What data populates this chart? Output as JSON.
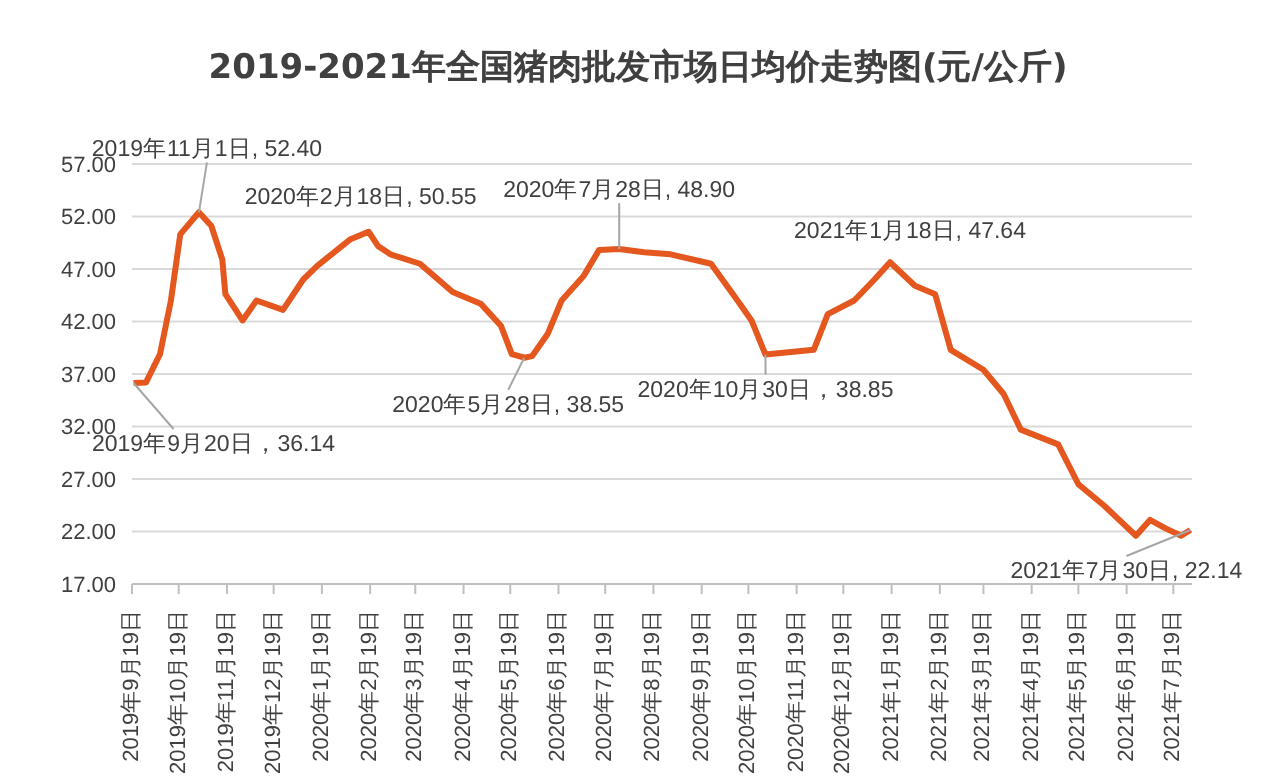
{
  "chart_data": {
    "type": "line",
    "title": "2019-2021年全国猪肉批发市场日均价走势图(元/公斤)",
    "x": [
      "2019-09-20",
      "2019-09-28",
      "2019-10-07",
      "2019-10-14",
      "2019-10-20",
      "2019-11-01",
      "2019-11-09",
      "2019-11-16",
      "2019-11-18",
      "2019-11-29",
      "2019-12-08",
      "2019-12-25",
      "2020-01-07",
      "2020-01-16",
      "2020-02-06",
      "2020-02-18",
      "2020-02-24",
      "2020-03-03",
      "2020-03-22",
      "2020-04-12",
      "2020-04-30",
      "2020-05-13",
      "2020-05-20",
      "2020-05-28",
      "2020-06-02",
      "2020-06-12",
      "2020-06-21",
      "2020-07-05",
      "2020-07-15",
      "2020-07-28",
      "2020-08-13",
      "2020-08-30",
      "2020-09-25",
      "2020-10-12",
      "2020-10-21",
      "2020-10-30",
      "2020-11-30",
      "2020-12-09",
      "2020-12-26",
      "2021-01-08",
      "2021-01-18",
      "2021-02-03",
      "2021-02-16",
      "2021-02-26",
      "2021-03-19",
      "2021-04-01",
      "2021-04-12",
      "2021-05-06",
      "2021-05-19",
      "2021-06-05",
      "2021-06-25",
      "2021-07-04",
      "2021-07-14",
      "2021-07-24",
      "2021-07-30"
    ],
    "series": [
      {
        "color": "#e4571e",
        "values": [
          36.14,
          36.2,
          38.9,
          44.0,
          50.3,
          52.4,
          51.1,
          47.9,
          44.6,
          42.1,
          44.0,
          43.1,
          46.0,
          47.3,
          49.8,
          50.55,
          49.2,
          48.4,
          47.5,
          44.8,
          43.7,
          41.6,
          38.9,
          38.55,
          38.7,
          40.8,
          44.0,
          46.3,
          48.8,
          48.9,
          48.6,
          48.4,
          47.5,
          44.0,
          42.1,
          38.85,
          39.3,
          42.7,
          44.0,
          46.0,
          47.64,
          45.4,
          44.6,
          39.3,
          37.4,
          35.1,
          31.7,
          30.3,
          26.5,
          24.4,
          21.6,
          23.1,
          22.3,
          21.6,
          22.14
        ]
      }
    ],
    "xlim": [
      "2019-09-19",
      "2021-07-31"
    ],
    "xticks": [
      {
        "value": "2019-09-19",
        "label": "2019年9月19日"
      },
      {
        "value": "2019-10-19",
        "label": "2019年10月19日"
      },
      {
        "value": "2019-11-19",
        "label": "2019年11月19日"
      },
      {
        "value": "2019-12-19",
        "label": "2019年12月19日"
      },
      {
        "value": "2020-01-19",
        "label": "2020年1月19日"
      },
      {
        "value": "2020-02-19",
        "label": "2020年2月19日"
      },
      {
        "value": "2020-03-19",
        "label": "2020年3月19日"
      },
      {
        "value": "2020-04-19",
        "label": "2020年4月19日"
      },
      {
        "value": "2020-05-19",
        "label": "2020年5月19日"
      },
      {
        "value": "2020-06-19",
        "label": "2020年6月19日"
      },
      {
        "value": "2020-07-19",
        "label": "2020年7月19日"
      },
      {
        "value": "2020-08-19",
        "label": "2020年8月19日"
      },
      {
        "value": "2020-09-19",
        "label": "2020年9月19日"
      },
      {
        "value": "2020-10-19",
        "label": "2020年10月19日"
      },
      {
        "value": "2020-11-19",
        "label": "2020年11月19日"
      },
      {
        "value": "2020-12-19",
        "label": "2020年12月19日"
      },
      {
        "value": "2021-01-19",
        "label": "2021年1月19日"
      },
      {
        "value": "2021-02-19",
        "label": "2021年2月19日"
      },
      {
        "value": "2021-03-19",
        "label": "2021年3月19日"
      },
      {
        "value": "2021-04-19",
        "label": "2021年4月19日"
      },
      {
        "value": "2021-05-19",
        "label": "2021年5月19日"
      },
      {
        "value": "2021-06-19",
        "label": "2021年6月19日"
      },
      {
        "value": "2021-07-19",
        "label": "2021年7月19日"
      }
    ],
    "ylim": [
      17,
      57
    ],
    "yticks": [
      {
        "value": 17,
        "label": "17.00"
      },
      {
        "value": 22,
        "label": "22.00"
      },
      {
        "value": 27,
        "label": "27.00"
      },
      {
        "value": 32,
        "label": "32.00"
      },
      {
        "value": 37,
        "label": "37.00"
      },
      {
        "value": 42,
        "label": "42.00"
      },
      {
        "value": 47,
        "label": "47.00"
      },
      {
        "value": 52,
        "label": "52.00"
      },
      {
        "value": 57,
        "label": "57.00"
      }
    ],
    "grid": "y",
    "marker": "none",
    "line_style": "solid",
    "legend": false,
    "annotations": [
      {
        "text": "2019年9月20日，36.14",
        "x": "2019-09-20",
        "y": 36.14
      },
      {
        "text": "2019年11月1日, 52.40",
        "x": "2019-11-01",
        "y": 52.4
      },
      {
        "text": "2020年2月18日, 50.55",
        "x": "2020-02-18",
        "y": 50.55
      },
      {
        "text": "2020年5月28日, 38.55",
        "x": "2020-05-28",
        "y": 38.55
      },
      {
        "text": "2020年7月28日, 48.90",
        "x": "2020-07-28",
        "y": 48.9
      },
      {
        "text": "2020年10月30日，38.85",
        "x": "2020-10-30",
        "y": 38.85
      },
      {
        "text": "2021年1月18日, 47.64",
        "x": "2021-01-18",
        "y": 47.64
      },
      {
        "text": "2021年7月30日, 22.14",
        "x": "2021-07-30",
        "y": 22.14
      }
    ]
  }
}
